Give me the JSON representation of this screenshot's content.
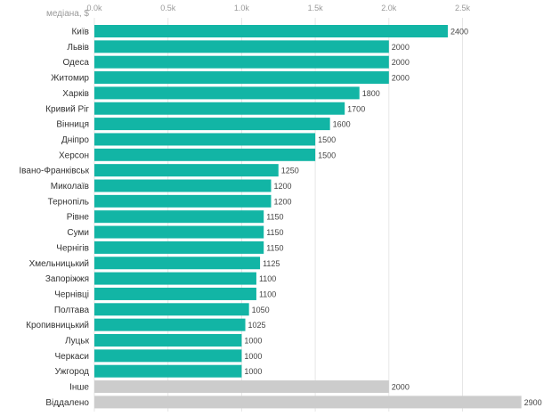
{
  "chart_data": {
    "type": "bar",
    "orientation": "horizontal",
    "title": "",
    "xlabel": "медіана, $",
    "ylabel": "",
    "xlim": [
      0,
      3000
    ],
    "grid": true,
    "ticks": [
      0,
      500,
      1000,
      1500,
      2000,
      2500
    ],
    "tick_labels": [
      "0.0k",
      "0.5k",
      "1.0k",
      "1.5k",
      "2.0k",
      "2.5k"
    ],
    "colors": {
      "city": "#12b5a5",
      "other": "#cccccc"
    },
    "categories": [
      "Київ",
      "Львів",
      "Одеса",
      "Житомир",
      "Харків",
      "Кривий Ріг",
      "Вінниця",
      "Дніпро",
      "Херсон",
      "Івано-Франківськ",
      "Миколаїв",
      "Тернопіль",
      "Рівне",
      "Суми",
      "Чернігів",
      "Хмельницький",
      "Запоріжжя",
      "Чернівці",
      "Полтава",
      "Кропивницький",
      "Луцьк",
      "Черкаси",
      "Ужгород",
      "Інше",
      "Віддалено"
    ],
    "values": [
      2400,
      2000,
      2000,
      2000,
      1800,
      1700,
      1600,
      1500,
      1500,
      1250,
      1200,
      1200,
      1150,
      1150,
      1150,
      1125,
      1100,
      1100,
      1050,
      1025,
      1000,
      1000,
      1000,
      2000,
      2900
    ],
    "groups": [
      "city",
      "city",
      "city",
      "city",
      "city",
      "city",
      "city",
      "city",
      "city",
      "city",
      "city",
      "city",
      "city",
      "city",
      "city",
      "city",
      "city",
      "city",
      "city",
      "city",
      "city",
      "city",
      "city",
      "other",
      "other"
    ]
  }
}
